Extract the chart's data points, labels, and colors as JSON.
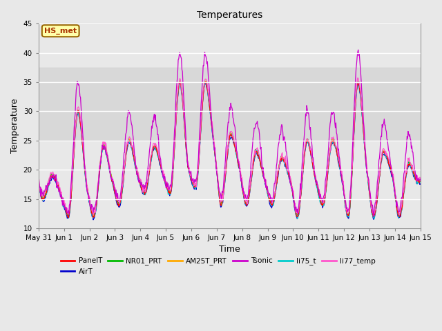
{
  "title": "Temperatures",
  "xlabel": "Time",
  "ylabel": "Temperature",
  "ylim": [
    10,
    45
  ],
  "xlim_days": [
    0,
    15
  ],
  "series_colors": {
    "PanelT": "#ff0000",
    "AirT": "#0000cc",
    "NR01_PRT": "#00bb00",
    "AM25T_PRT": "#ffaa00",
    "Tsonic": "#cc00cc",
    "li75_t": "#00cccc",
    "li77_temp": "#ff55cc"
  },
  "legend_label": "HS_met",
  "legend_label_color": "#aa3300",
  "legend_label_bg": "#ffffaa",
  "legend_label_border": "#996600",
  "yticks": [
    10,
    15,
    20,
    25,
    30,
    35,
    40,
    45
  ],
  "xtick_labels": [
    "May 31",
    "Jun 1",
    "Jun 2",
    "Jun 3",
    "Jun 4",
    "Jun 5",
    "Jun 6",
    "Jun 7",
    "Jun 8",
    "Jun 9",
    "Jun 10",
    "Jun 11",
    "Jun 12",
    "Jun 13",
    "Jun 14",
    "Jun 15"
  ],
  "xtick_positions": [
    0,
    1,
    2,
    3,
    4,
    5,
    6,
    7,
    8,
    9,
    10,
    11,
    12,
    13,
    14,
    15
  ],
  "shadeband_lo": 25,
  "shadeband_hi": 37.5
}
